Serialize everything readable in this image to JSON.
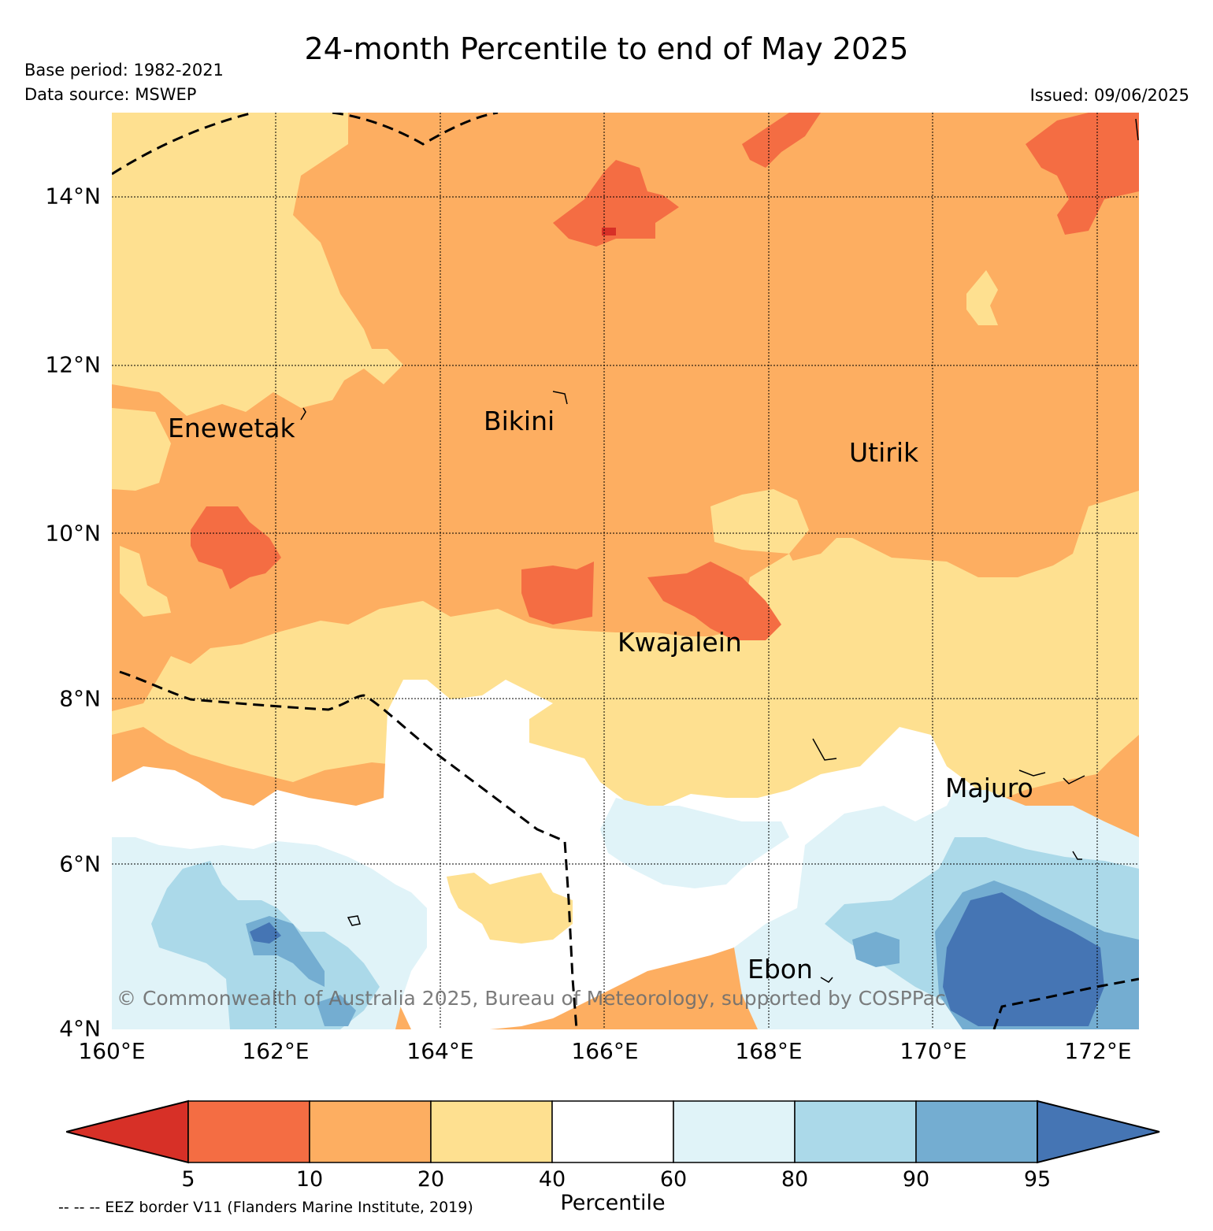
{
  "title": "24-month Percentile to end of May 2025",
  "base_period": "Base period: 1982-2021",
  "data_source": "Data source: MSWEP",
  "issued": "Issued: 09/06/2025",
  "copyright": "© Commonwealth of Australia 2025, Bureau of Meteorology, supported by COSPPac",
  "eez_note": "-- -- -- EEZ border V11 (Flanders Marine Institute, 2019)",
  "map": {
    "lon_range": [
      160,
      172.5
    ],
    "lat_range": [
      4,
      15
    ],
    "lat_labels": [
      "14°N",
      "12°N",
      "10°N",
      "8°N",
      "6°N",
      "4°N"
    ],
    "lon_labels": [
      "160°E",
      "162°E",
      "164°E",
      "166°E",
      "168°E",
      "170°E",
      "172°E"
    ],
    "places": [
      {
        "name": "Enewetak",
        "lon": 162.3,
        "lat": 11.4
      },
      {
        "name": "Bikini",
        "lon": 165.5,
        "lat": 11.6
      },
      {
        "name": "Utirik",
        "lon": 169.8,
        "lat": 11.3
      },
      {
        "name": "Kwajalein",
        "lon": 167.4,
        "lat": 8.7
      },
      {
        "name": "Majuro",
        "lon": 171.3,
        "lat": 7.1
      },
      {
        "name": "Ebon",
        "lon": 168.7,
        "lat": 4.6
      }
    ],
    "eez_border_style": "dashed black"
  },
  "legend": {
    "label": "Percentile",
    "ticks": [
      "5",
      "10",
      "20",
      "40",
      "60",
      "80",
      "90",
      "95"
    ],
    "colors": [
      "#d73027",
      "#f46d43",
      "#fdae61",
      "#fee090",
      "#ffffff",
      "#e0f3f8",
      "#abd9e9",
      "#74add1",
      "#4575b4"
    ]
  }
}
